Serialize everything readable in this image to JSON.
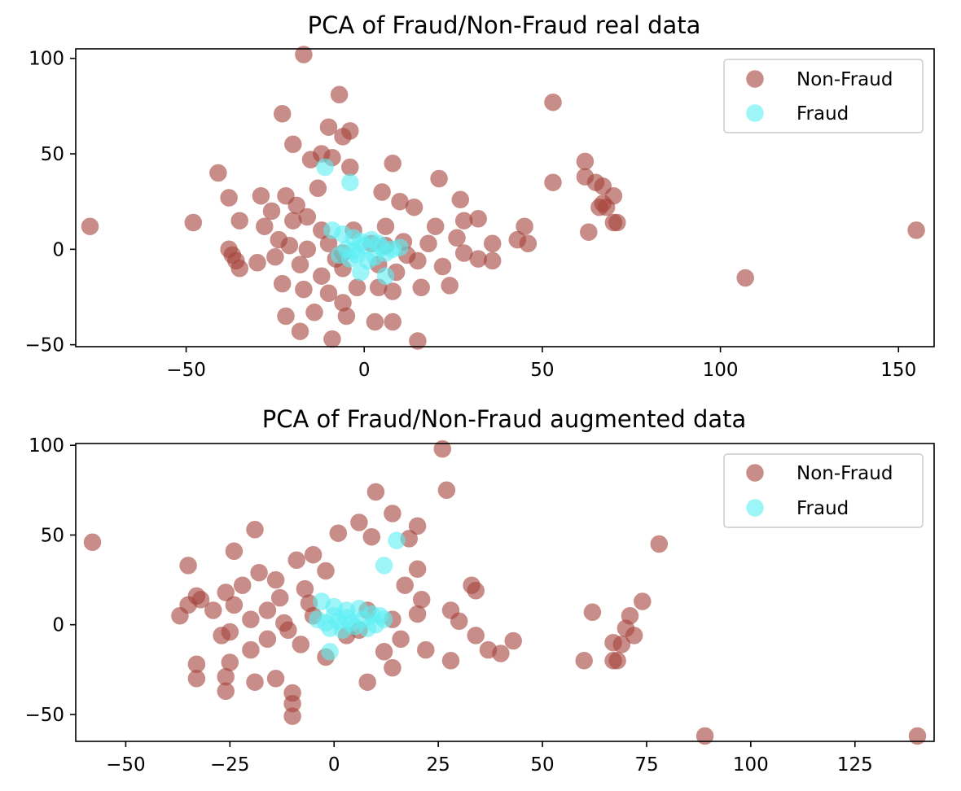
{
  "chart_data": [
    {
      "type": "scatter",
      "title": "PCA of Fraud/Non-Fraud real data",
      "xlabel": "",
      "ylabel": "",
      "xlim": [
        -81,
        160
      ],
      "ylim": [
        -51,
        105
      ],
      "xticks": [
        -50,
        0,
        50,
        100,
        150
      ],
      "yticks": [
        -50,
        0,
        50,
        100
      ],
      "xtick_labels": [
        "−50",
        "0",
        "50",
        "100",
        "150"
      ],
      "ytick_labels": [
        "−50",
        "0",
        "50",
        "100"
      ],
      "grid": false,
      "legend": "top-right",
      "series": [
        {
          "name": "Non-Fraud",
          "color": "#a5433a",
          "points": [
            [
              -17,
              102
            ],
            [
              -7,
              81
            ],
            [
              53,
              77
            ],
            [
              -23,
              71
            ],
            [
              -10,
              64
            ],
            [
              -4,
              62
            ],
            [
              -6,
              59
            ],
            [
              -20,
              55
            ],
            [
              -12,
              50
            ],
            [
              -9,
              48
            ],
            [
              -15,
              47
            ],
            [
              8,
              45
            ],
            [
              -4,
              43
            ],
            [
              -41,
              40
            ],
            [
              62,
              46
            ],
            [
              53,
              35
            ],
            [
              21,
              37
            ],
            [
              62,
              38
            ],
            [
              65,
              35
            ],
            [
              67,
              33
            ],
            [
              70,
              28
            ],
            [
              -38,
              27
            ],
            [
              -29,
              28
            ],
            [
              -22,
              28
            ],
            [
              5,
              30
            ],
            [
              10,
              25
            ],
            [
              27,
              26
            ],
            [
              14,
              22
            ],
            [
              -13,
              32
            ],
            [
              -19,
              23
            ],
            [
              -26,
              20
            ],
            [
              -16,
              17
            ],
            [
              67,
              24
            ],
            [
              66,
              22
            ],
            [
              68,
              22
            ],
            [
              70,
              14
            ],
            [
              71,
              14
            ],
            [
              -77,
              12
            ],
            [
              -48,
              14
            ],
            [
              -35,
              15
            ],
            [
              -28,
              12
            ],
            [
              -20,
              15
            ],
            [
              -12,
              10
            ],
            [
              20,
              12
            ],
            [
              28,
              15
            ],
            [
              32,
              16
            ],
            [
              45,
              12
            ],
            [
              -24,
              5
            ],
            [
              -16,
              0
            ],
            [
              -10,
              3
            ],
            [
              -6,
              -2
            ],
            [
              2,
              3
            ],
            [
              6,
              2
            ],
            [
              11,
              4
            ],
            [
              18,
              3
            ],
            [
              26,
              6
            ],
            [
              36,
              3
            ],
            [
              43,
              5
            ],
            [
              46,
              3
            ],
            [
              63,
              9
            ],
            [
              155,
              10
            ],
            [
              -38,
              0
            ],
            [
              -37,
              -3
            ],
            [
              -36,
              -6
            ],
            [
              -35,
              -10
            ],
            [
              -30,
              -7
            ],
            [
              -25,
              -4
            ],
            [
              -18,
              -8
            ],
            [
              -12,
              -14
            ],
            [
              -6,
              -10
            ],
            [
              4,
              -8
            ],
            [
              9,
              -12
            ],
            [
              15,
              -6
            ],
            [
              22,
              -9
            ],
            [
              32,
              -5
            ],
            [
              36,
              -6
            ],
            [
              -23,
              -18
            ],
            [
              -17,
              -21
            ],
            [
              -10,
              -23
            ],
            [
              -6,
              -28
            ],
            [
              -2,
              -20
            ],
            [
              4,
              -20
            ],
            [
              8,
              -22
            ],
            [
              16,
              -20
            ],
            [
              24,
              -19
            ],
            [
              -22,
              -35
            ],
            [
              -14,
              -33
            ],
            [
              -5,
              -35
            ],
            [
              3,
              -38
            ],
            [
              8,
              -38
            ],
            [
              -18,
              -43
            ],
            [
              -9,
              -47
            ],
            [
              15,
              -48
            ],
            [
              107,
              -15
            ],
            [
              -3,
              10
            ],
            [
              6,
              12
            ],
            [
              -8,
              -5
            ],
            [
              12,
              -3
            ],
            [
              -21,
              2
            ],
            [
              28,
              -2
            ]
          ]
        },
        {
          "name": "Fraud",
          "color": "#5df0f5",
          "points": [
            [
              -11,
              43
            ],
            [
              -4,
              35
            ],
            [
              -9,
              10
            ],
            [
              -6,
              8
            ],
            [
              -3,
              6
            ],
            [
              -1,
              4
            ],
            [
              0,
              2
            ],
            [
              2,
              5
            ],
            [
              4,
              3
            ],
            [
              -7,
              -3
            ],
            [
              -4,
              -5
            ],
            [
              -2,
              -3
            ],
            [
              1,
              -6
            ],
            [
              3,
              -4
            ],
            [
              6,
              -2
            ],
            [
              8,
              0
            ],
            [
              10,
              1
            ],
            [
              -1,
              -12
            ],
            [
              6,
              -14
            ],
            [
              -5,
              0
            ],
            [
              5,
              1
            ],
            [
              -3,
              -1
            ]
          ]
        }
      ]
    },
    {
      "type": "scatter",
      "title": "PCA of Fraud/Non-Fraud augmented data",
      "xlabel": "",
      "ylabel": "",
      "xlim": [
        -62,
        144
      ],
      "ylim": [
        -65,
        101
      ],
      "xticks": [
        -50,
        -25,
        0,
        25,
        50,
        75,
        100,
        125
      ],
      "yticks": [
        -50,
        0,
        50,
        100
      ],
      "xtick_labels": [
        "−50",
        "−25",
        "0",
        "25",
        "50",
        "75",
        "100",
        "125"
      ],
      "ytick_labels": [
        "−50",
        "0",
        "50",
        "100"
      ],
      "grid": false,
      "legend": "top-right",
      "series": [
        {
          "name": "Non-Fraud",
          "color": "#a5433a",
          "points": [
            [
              26,
              98
            ],
            [
              27,
              75
            ],
            [
              10,
              74
            ],
            [
              14,
              62
            ],
            [
              6,
              57
            ],
            [
              20,
              55
            ],
            [
              -19,
              53
            ],
            [
              1,
              51
            ],
            [
              9,
              49
            ],
            [
              18,
              48
            ],
            [
              -58,
              46
            ],
            [
              78,
              45
            ],
            [
              -5,
              39
            ],
            [
              20,
              31
            ],
            [
              -9,
              36
            ],
            [
              -35,
              33
            ],
            [
              -24,
              41
            ],
            [
              -18,
              29
            ],
            [
              -14,
              25
            ],
            [
              -22,
              22
            ],
            [
              -26,
              18
            ],
            [
              -33,
              16
            ],
            [
              -32,
              14
            ],
            [
              -35,
              11
            ],
            [
              -37,
              5
            ],
            [
              -29,
              8
            ],
            [
              -24,
              11
            ],
            [
              -16,
              8
            ],
            [
              -13,
              15
            ],
            [
              -7,
              20
            ],
            [
              -2,
              30
            ],
            [
              17,
              22
            ],
            [
              21,
              14
            ],
            [
              33,
              22
            ],
            [
              34,
              19
            ],
            [
              28,
              8
            ],
            [
              -20,
              3
            ],
            [
              -12,
              1
            ],
            [
              -5,
              5
            ],
            [
              8,
              8
            ],
            [
              14,
              3
            ],
            [
              20,
              6
            ],
            [
              30,
              2
            ],
            [
              -27,
              -6
            ],
            [
              -25,
              -4
            ],
            [
              -20,
              -14
            ],
            [
              -16,
              -8
            ],
            [
              -11,
              -3
            ],
            [
              -8,
              -11
            ],
            [
              -2,
              -18
            ],
            [
              12,
              -15
            ],
            [
              16,
              -8
            ],
            [
              22,
              -14
            ],
            [
              34,
              -6
            ],
            [
              43,
              -9
            ],
            [
              37,
              -14
            ],
            [
              40,
              -16
            ],
            [
              -33,
              -22
            ],
            [
              -33,
              -30
            ],
            [
              -25,
              -21
            ],
            [
              -26,
              -29
            ],
            [
              -19,
              -32
            ],
            [
              -14,
              -30
            ],
            [
              -10,
              -38
            ],
            [
              -10,
              -44
            ],
            [
              -10,
              -51
            ],
            [
              -26,
              -37
            ],
            [
              8,
              -32
            ],
            [
              14,
              -24
            ],
            [
              28,
              -20
            ],
            [
              60,
              -20
            ],
            [
              67,
              -20
            ],
            [
              68,
              -20
            ],
            [
              62,
              7
            ],
            [
              71,
              5
            ],
            [
              74,
              13
            ],
            [
              70,
              -2
            ],
            [
              72,
              -6
            ],
            [
              67,
              -10
            ],
            [
              69,
              -11
            ],
            [
              89,
              -62
            ],
            [
              140,
              -62
            ],
            [
              3,
              -6
            ],
            [
              -6,
              12
            ],
            [
              6,
              -3
            ]
          ]
        },
        {
          "name": "Fraud",
          "color": "#5df0f5",
          "points": [
            [
              15,
              47
            ],
            [
              12,
              33
            ],
            [
              -3,
              13
            ],
            [
              0,
              10
            ],
            [
              3,
              8
            ],
            [
              6,
              9
            ],
            [
              9,
              6
            ],
            [
              12,
              3
            ],
            [
              -4,
              3
            ],
            [
              -2,
              1
            ],
            [
              1,
              2
            ],
            [
              4,
              1
            ],
            [
              7,
              3
            ],
            [
              10,
              0
            ],
            [
              -1,
              -2
            ],
            [
              2,
              -3
            ],
            [
              5,
              -1
            ],
            [
              8,
              -2
            ],
            [
              -1,
              -15
            ],
            [
              0,
              5
            ],
            [
              3,
              4
            ],
            [
              11,
              5
            ]
          ]
        }
      ]
    }
  ]
}
